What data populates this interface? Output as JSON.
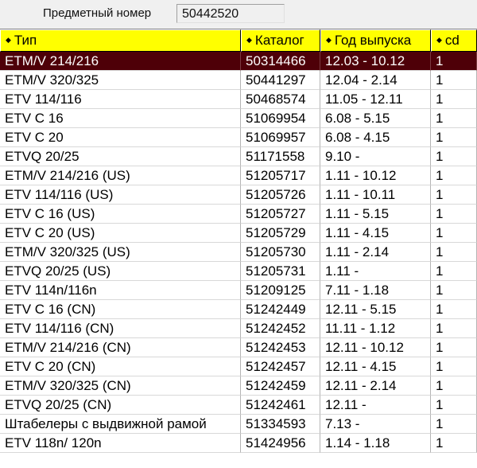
{
  "header": {
    "part_label": "Предметный номер",
    "part_value": "50442520"
  },
  "table": {
    "columns": [
      {
        "label": "Тип"
      },
      {
        "label": "Каталог"
      },
      {
        "label": "Год выпуска"
      },
      {
        "label": "cd"
      }
    ],
    "selected_row_index": 0,
    "rows": [
      {
        "type": "ETM/V 214/216",
        "catalog": "50314466",
        "years": "12.03 - 10.12",
        "cd": "1"
      },
      {
        "type": "ETM/V 320/325",
        "catalog": "50441297",
        "years": "12.04 - 2.14",
        "cd": "1"
      },
      {
        "type": "ETV 114/116",
        "catalog": "50468574",
        "years": "11.05 - 12.11",
        "cd": "1"
      },
      {
        "type": "ETV C 16",
        "catalog": "51069954",
        "years": "6.08 - 5.15",
        "cd": "1"
      },
      {
        "type": "ETV C 20",
        "catalog": "51069957",
        "years": "6.08 - 4.15",
        "cd": "1"
      },
      {
        "type": "ETVQ 20/25",
        "catalog": "51171558",
        "years": "9.10 -",
        "cd": "1"
      },
      {
        "type": "ETM/V 214/216 (US)",
        "catalog": "51205717",
        "years": "1.11 - 10.12",
        "cd": "1"
      },
      {
        "type": "ETV 114/116 (US)",
        "catalog": "51205726",
        "years": "1.11 - 10.11",
        "cd": "1"
      },
      {
        "type": "ETV C 16 (US)",
        "catalog": "51205727",
        "years": "1.11 - 5.15",
        "cd": "1"
      },
      {
        "type": "ETV C 20 (US)",
        "catalog": "51205729",
        "years": "1.11 - 4.15",
        "cd": "1"
      },
      {
        "type": "ETM/V 320/325 (US)",
        "catalog": "51205730",
        "years": "1.11 - 2.14",
        "cd": "1"
      },
      {
        "type": "ETVQ 20/25 (US)",
        "catalog": "51205731",
        "years": "1.11 -",
        "cd": "1"
      },
      {
        "type": "ETV 114n/116n",
        "catalog": "51209125",
        "years": "7.11 - 1.18",
        "cd": "1"
      },
      {
        "type": "ETV C 16 (CN)",
        "catalog": "51242449",
        "years": "12.11 - 5.15",
        "cd": "1"
      },
      {
        "type": "ETV 114/116 (CN)",
        "catalog": "51242452",
        "years": "11.11 - 1.12",
        "cd": "1"
      },
      {
        "type": "ETM/V 214/216 (CN)",
        "catalog": "51242453",
        "years": "12.11 - 10.12",
        "cd": "1"
      },
      {
        "type": "ETV C 20 (CN)",
        "catalog": "51242457",
        "years": "12.11 - 4.15",
        "cd": "1"
      },
      {
        "type": "ETM/V 320/325 (CN)",
        "catalog": "51242459",
        "years": "12.11 - 2.14",
        "cd": "1"
      },
      {
        "type": "ETVQ 20/25 (CN)",
        "catalog": "51242461",
        "years": "12.11 -",
        "cd": "1"
      },
      {
        "type": "Штабелеры с выдвижной рамой",
        "catalog": "51334593",
        "years": "7.13 -",
        "cd": "1"
      },
      {
        "type": "ETV 118n/ 120n",
        "catalog": "51424956",
        "years": "1.14 - 1.18",
        "cd": "1"
      }
    ]
  }
}
